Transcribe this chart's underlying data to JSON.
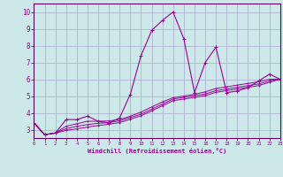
{
  "xlabel": "Windchill (Refroidissement éolien,°C)",
  "bg_color": "#cce8e8",
  "grid_color": "#aaaacc",
  "line_color": "#990099",
  "xlim": [
    0,
    23
  ],
  "ylim": [
    2.5,
    10.5
  ],
  "xticks": [
    0,
    1,
    2,
    3,
    4,
    5,
    6,
    7,
    8,
    9,
    10,
    11,
    12,
    13,
    14,
    15,
    16,
    17,
    18,
    19,
    20,
    21,
    22,
    23
  ],
  "yticks": [
    3,
    4,
    5,
    6,
    7,
    8,
    9,
    10
  ],
  "series1_y": [
    3.4,
    2.7,
    2.8,
    3.6,
    3.6,
    3.8,
    3.5,
    3.4,
    3.7,
    5.1,
    7.4,
    8.9,
    9.5,
    10.0,
    8.4,
    5.2,
    7.0,
    7.9,
    5.2,
    5.3,
    5.5,
    5.9,
    6.3,
    6.0
  ],
  "series2_y": [
    3.4,
    2.7,
    2.8,
    3.2,
    3.35,
    3.5,
    3.5,
    3.52,
    3.6,
    3.8,
    4.05,
    4.35,
    4.65,
    4.9,
    5.0,
    5.1,
    5.25,
    5.45,
    5.55,
    5.65,
    5.75,
    5.85,
    6.0,
    6.0
  ],
  "series3_y": [
    3.4,
    2.7,
    2.8,
    3.05,
    3.2,
    3.3,
    3.38,
    3.42,
    3.52,
    3.72,
    3.92,
    4.22,
    4.52,
    4.82,
    4.92,
    5.02,
    5.12,
    5.32,
    5.42,
    5.52,
    5.62,
    5.72,
    5.9,
    6.0
  ],
  "series4_y": [
    3.4,
    2.7,
    2.8,
    2.95,
    3.05,
    3.15,
    3.25,
    3.32,
    3.42,
    3.62,
    3.82,
    4.12,
    4.42,
    4.72,
    4.82,
    4.92,
    5.02,
    5.22,
    5.32,
    5.42,
    5.52,
    5.62,
    5.82,
    6.0
  ]
}
